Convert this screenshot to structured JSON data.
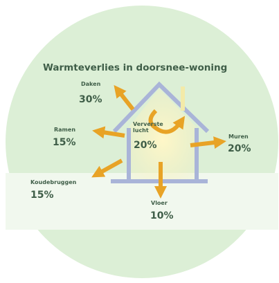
{
  "title": "Warmteverlies in doorsnee-woning",
  "items": [
    {
      "label": "Daken",
      "value": "30%"
    },
    {
      "label": "Ramen",
      "value": "15%"
    },
    {
      "label": "Ververste lucht",
      "value": "20%"
    },
    {
      "label": "Muren",
      "value": "20%"
    },
    {
      "label": "Koudebruggen",
      "value": "15%"
    },
    {
      "label": "Vloer",
      "value": "10%"
    }
  ]
}
